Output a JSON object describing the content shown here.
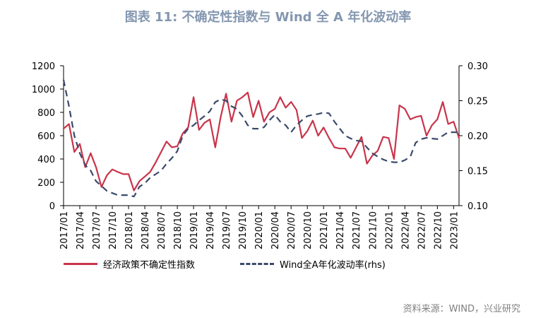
{
  "title": "图表 11: 不确定性指数与 Wind 全 A 年化波动率",
  "source": "资料来源：WIND，兴业研究",
  "legend": {
    "epu": "经济政策不确定性指数",
    "vol": "Wind全A年化波动率(rhs)"
  },
  "colors": {
    "epu": "#c8344a",
    "vol": "#3b4a6b"
  },
  "chart_data": {
    "type": "line",
    "x": [
      "2017/01",
      "2017/02",
      "2017/03",
      "2017/04",
      "2017/05",
      "2017/06",
      "2017/07",
      "2017/08",
      "2017/09",
      "2017/10",
      "2017/11",
      "2017/12",
      "2018/01",
      "2018/02",
      "2018/03",
      "2018/04",
      "2018/05",
      "2018/06",
      "2018/07",
      "2018/08",
      "2018/09",
      "2018/10",
      "2018/11",
      "2018/12",
      "2019/01",
      "2019/02",
      "2019/03",
      "2019/04",
      "2019/05",
      "2019/06",
      "2019/07",
      "2019/08",
      "2019/09",
      "2019/10",
      "2019/11",
      "2019/12",
      "2020/01",
      "2020/02",
      "2020/03",
      "2020/04",
      "2020/05",
      "2020/06",
      "2020/07",
      "2020/08",
      "2020/09",
      "2020/10",
      "2020/11",
      "2020/12",
      "2021/01",
      "2021/02",
      "2021/03",
      "2021/04",
      "2021/05",
      "2021/06",
      "2021/07",
      "2021/08",
      "2021/09",
      "2021/10",
      "2021/11",
      "2021/12",
      "2022/01",
      "2022/02",
      "2022/03",
      "2022/04",
      "2022/05",
      "2022/06",
      "2022/07",
      "2022/08",
      "2022/09",
      "2022/10",
      "2022/11",
      "2022/12",
      "2023/01",
      "2023/02"
    ],
    "xtick_labels": [
      "2017/01",
      "2017/04",
      "2017/07",
      "2017/10",
      "2018/01",
      "2018/04",
      "2018/07",
      "2018/10",
      "2019/01",
      "2019/04",
      "2019/07",
      "2019/10",
      "2020/01",
      "2020/04",
      "2020/07",
      "2020/10",
      "2021/01",
      "2021/04",
      "2021/07",
      "2021/10",
      "2022/01",
      "2022/04",
      "2022/07",
      "2022/10",
      "2023/01"
    ],
    "series": [
      {
        "name": "经济政策不确定性指数",
        "axis": "left",
        "style": "solid",
        "values": [
          660,
          700,
          460,
          530,
          330,
          450,
          330,
          160,
          260,
          310,
          290,
          270,
          270,
          130,
          210,
          250,
          290,
          370,
          460,
          550,
          500,
          510,
          620,
          670,
          930,
          650,
          710,
          740,
          500,
          760,
          960,
          720,
          900,
          930,
          970,
          760,
          900,
          720,
          800,
          830,
          930,
          840,
          890,
          820,
          580,
          640,
          730,
          600,
          670,
          580,
          500,
          490,
          490,
          410,
          500,
          590,
          360,
          430,
          470,
          590,
          580,
          400,
          860,
          830,
          740,
          760,
          770,
          600,
          690,
          740,
          890,
          700,
          720,
          580
        ]
      },
      {
        "name": "Wind全A年化波动率(rhs)",
        "axis": "right",
        "style": "dashed",
        "values": [
          0.28,
          0.242,
          0.2,
          0.175,
          0.158,
          0.15,
          0.135,
          0.128,
          0.121,
          0.118,
          0.115,
          0.115,
          0.115,
          0.113,
          0.127,
          0.132,
          0.14,
          0.145,
          0.15,
          0.16,
          0.168,
          0.178,
          0.2,
          0.21,
          0.215,
          0.222,
          0.228,
          0.235,
          0.248,
          0.252,
          0.25,
          0.242,
          0.238,
          0.228,
          0.215,
          0.21,
          0.21,
          0.212,
          0.222,
          0.23,
          0.22,
          0.215,
          0.205,
          0.215,
          0.222,
          0.228,
          0.23,
          0.231,
          0.233,
          0.232,
          0.22,
          0.21,
          0.2,
          0.196,
          0.193,
          0.192,
          0.183,
          0.175,
          0.17,
          0.166,
          0.163,
          0.162,
          0.162,
          0.165,
          0.17,
          0.19,
          0.195,
          0.197,
          0.196,
          0.195,
          0.2,
          0.205,
          0.205,
          0.205
        ]
      }
    ],
    "y_left": {
      "min": 0,
      "max": 1200,
      "ticks": [
        0,
        200,
        400,
        600,
        800,
        1000,
        1200
      ]
    },
    "y_right": {
      "min": 0.1,
      "max": 0.3,
      "ticks": [
        "0.10",
        "0.15",
        "0.20",
        "0.25",
        "0.30"
      ]
    },
    "legend_position": "bottom"
  }
}
